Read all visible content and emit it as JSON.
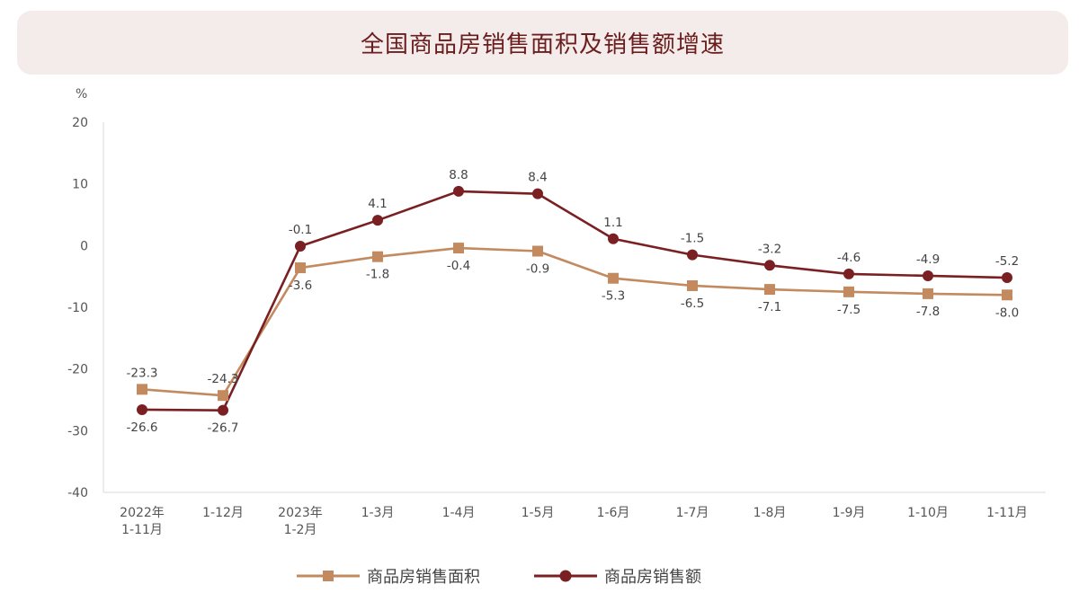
{
  "title": "全国商品房销售面积及销售额增速",
  "unit": "%",
  "colors": {
    "area": "#c38a5f",
    "amount": "#7a1f22",
    "title_bg": "#f3ecea",
    "title_text": "#6b1d1d"
  },
  "chart_data": {
    "type": "line",
    "title": "全国商品房销售面积及销售额增速",
    "ylabel": "%",
    "ylim": [
      -40,
      20
    ],
    "yticks": [
      20,
      10,
      0,
      -10,
      -20,
      -30,
      -40
    ],
    "categories": [
      [
        "2022年",
        "1-11月"
      ],
      [
        "1-12月"
      ],
      [
        "2023年",
        "1-2月"
      ],
      [
        "1-3月"
      ],
      [
        "1-4月"
      ],
      [
        "1-5月"
      ],
      [
        "1-6月"
      ],
      [
        "1-7月"
      ],
      [
        "1-8月"
      ],
      [
        "1-9月"
      ],
      [
        "1-10月"
      ],
      [
        "1-11月"
      ]
    ],
    "series": [
      {
        "name": "商品房销售面积",
        "marker": "square",
        "values": [
          -23.3,
          -24.3,
          -3.6,
          -1.8,
          -0.4,
          -0.9,
          -5.3,
          -6.5,
          -7.1,
          -7.5,
          -7.8,
          -8.0
        ]
      },
      {
        "name": "商品房销售额",
        "marker": "circle",
        "values": [
          -26.6,
          -26.7,
          -0.1,
          4.1,
          8.8,
          8.4,
          1.1,
          -1.5,
          -3.2,
          -4.6,
          -4.9,
          -5.2
        ]
      }
    ],
    "grid": false,
    "legend_position": "bottom"
  }
}
